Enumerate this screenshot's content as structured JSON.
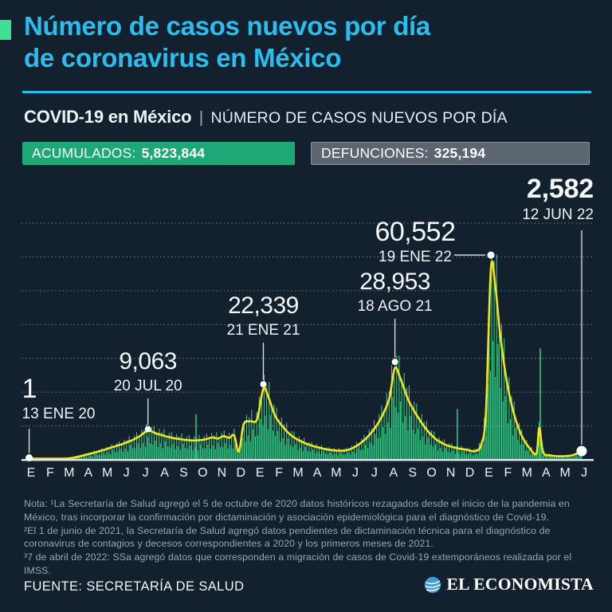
{
  "page": {
    "background": "#13202e",
    "accent_green": "#3ee093",
    "accent_cyan": "#29bef0"
  },
  "header": {
    "title_line1": "Número de casos nuevos por día",
    "title_line2": "de coronavirus en México",
    "kicker_bold": "COVID-19 en México",
    "kicker_sep": "|",
    "kicker_rest": "NÚMERO DE CASOS NUEVOS POR DÍA"
  },
  "badges": [
    {
      "label": "ACUMULADOS:",
      "value": "5,823,844",
      "bg": "#1da877"
    },
    {
      "label": "DEFUNCIONES:",
      "value": "325,194",
      "bg": "#5c6671"
    }
  ],
  "chart_data": {
    "type": "bar+line",
    "title": "COVID-19 en México | Número de casos nuevos por día",
    "ylim": [
      0,
      70000
    ],
    "grid_interval": 10000,
    "grid_on": true,
    "x_months": [
      "E",
      "F",
      "M",
      "A",
      "M",
      "J",
      "J",
      "A",
      "S",
      "O",
      "N",
      "D",
      "E",
      "F",
      "M",
      "A",
      "M",
      "J",
      "J",
      "A",
      "S",
      "O",
      "N",
      "D",
      "E",
      "F",
      "M",
      "A",
      "M",
      "J"
    ],
    "annotations": [
      {
        "value": "1",
        "date": "13 ENE 20",
        "month": 0.4,
        "cases": 1
      },
      {
        "value": "9,063",
        "date": "20 JUL 20",
        "month": 6.63,
        "cases": 9063
      },
      {
        "value": "22,339",
        "date": "21 ENE 21",
        "month": 12.68,
        "cases": 22339
      },
      {
        "value": "28,953",
        "date": "18 AGO 21",
        "month": 19.58,
        "cases": 28953
      },
      {
        "value": "60,552",
        "date": "19 ENE 22",
        "month": 24.61,
        "cases": 60552
      },
      {
        "value": "2,582",
        "date": "12 JUN 22",
        "month": 29.37,
        "cases": 2582
      }
    ],
    "avg_line": [
      [
        0.4,
        1
      ],
      [
        1.2,
        3
      ],
      [
        1.8,
        15
      ],
      [
        2.3,
        120
      ],
      [
        2.8,
        700
      ],
      [
        3.3,
        1400
      ],
      [
        3.8,
        2100
      ],
      [
        4.3,
        2900
      ],
      [
        4.8,
        3800
      ],
      [
        5.3,
        4700
      ],
      [
        5.8,
        5800
      ],
      [
        6.2,
        7000
      ],
      [
        6.63,
        8600
      ],
      [
        7.1,
        7700
      ],
      [
        7.6,
        6900
      ],
      [
        8.1,
        6300
      ],
      [
        8.6,
        5900
      ],
      [
        9.1,
        5700
      ],
      [
        9.6,
        6000
      ],
      [
        10.0,
        6600
      ],
      [
        10.3,
        6300
      ],
      [
        10.6,
        7000
      ],
      [
        10.9,
        6500
      ],
      [
        11.15,
        7200
      ],
      [
        11.4,
        2400
      ],
      [
        11.65,
        10500
      ],
      [
        12.0,
        11400
      ],
      [
        12.35,
        12000
      ],
      [
        12.68,
        21000
      ],
      [
        12.95,
        18500
      ],
      [
        13.3,
        13000
      ],
      [
        13.7,
        9800
      ],
      [
        14.1,
        7400
      ],
      [
        14.6,
        5600
      ],
      [
        15.1,
        4400
      ],
      [
        15.6,
        3600
      ],
      [
        16.1,
        3000
      ],
      [
        16.6,
        2700
      ],
      [
        17.1,
        2900
      ],
      [
        17.6,
        4200
      ],
      [
        18.1,
        6500
      ],
      [
        18.6,
        10000
      ],
      [
        19.0,
        14000
      ],
      [
        19.3,
        18500
      ],
      [
        19.58,
        27200
      ],
      [
        19.9,
        23500
      ],
      [
        20.3,
        17500
      ],
      [
        20.8,
        12500
      ],
      [
        21.3,
        8500
      ],
      [
        21.8,
        5800
      ],
      [
        22.3,
        4300
      ],
      [
        22.8,
        3500
      ],
      [
        23.3,
        3000
      ],
      [
        23.8,
        2600
      ],
      [
        24.1,
        4500
      ],
      [
        24.35,
        14000
      ],
      [
        24.61,
        56500
      ],
      [
        24.85,
        51000
      ],
      [
        25.1,
        37000
      ],
      [
        25.45,
        23000
      ],
      [
        25.85,
        13000
      ],
      [
        26.25,
        6800
      ],
      [
        26.65,
        3400
      ],
      [
        27.0,
        1900
      ],
      [
        27.15,
        9500
      ],
      [
        27.35,
        2200
      ],
      [
        27.75,
        1300
      ],
      [
        28.15,
        1050
      ],
      [
        28.55,
        1100
      ],
      [
        28.95,
        1450
      ],
      [
        29.37,
        2582
      ]
    ],
    "outlier_spikes": [
      [
        9.15,
        13500
      ],
      [
        22.85,
        15000
      ],
      [
        27.2,
        33000
      ]
    ],
    "colors": {
      "bars": "#2edb87",
      "line": "#f3e51d",
      "grid": "#7e8b97",
      "dots": "#ffffff"
    }
  },
  "notes": [
    "Nota: ¹La Secretaría de Salud agregó el 5 de octubre de 2020 datos históricos rezagados desde el inicio de la pandemia en México, tras incorporar la confirmación por dictaminación y asociación epidemiológica para el diagnóstico de Covid-19.",
    "²El 1 de junio de 2021, la Secretaría de Salud agregó datos pendientes de dictaminación técnica para el diagnóstico de coronavirus de contagios y decesos correspondientes a 2020 y los primeros meses de 2021.",
    "³7 de abril de 2022: SSa agregó datos que corresponden a migración de casos de Covid-19 extemporáneos realizada por el IMSS."
  ],
  "footer": {
    "source": "FUENTE: SECRETARÍA DE SALUD",
    "brand": "EL ECONOMISTA"
  }
}
